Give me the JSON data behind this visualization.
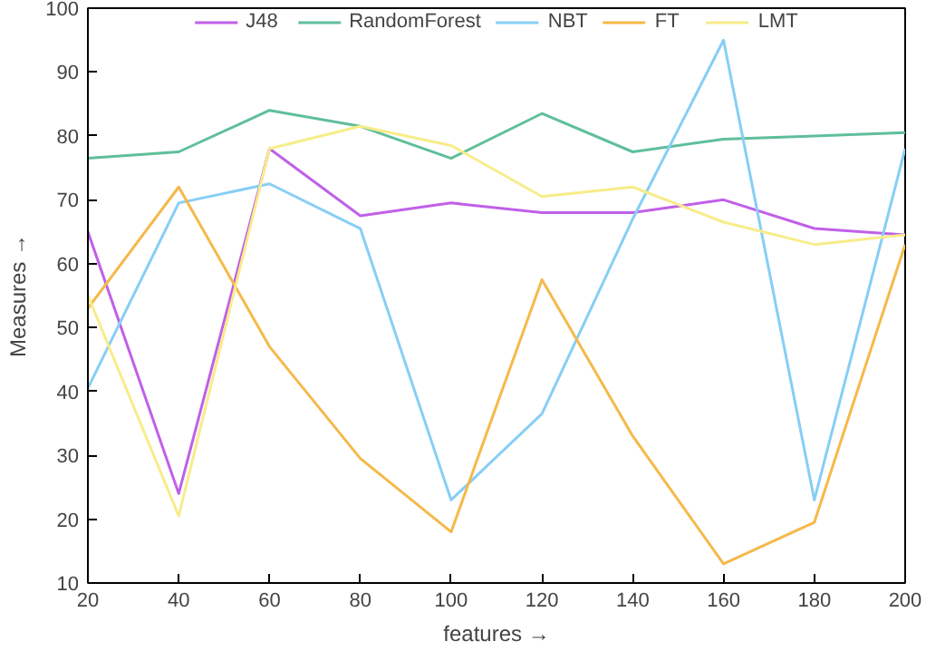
{
  "chart_data": {
    "type": "line",
    "xlabel": "features →",
    "ylabel": "Measures →",
    "x": [
      20,
      40,
      60,
      80,
      100,
      120,
      140,
      160,
      180,
      200
    ],
    "series": [
      {
        "name": "J48",
        "color": "#c060e8",
        "values": [
          65,
          24,
          78,
          67.5,
          69.5,
          68,
          68,
          70,
          65.5,
          64.5
        ]
      },
      {
        "name": "RandomForest",
        "color": "#5fbf9a",
        "values": [
          76.5,
          77.5,
          84,
          81.5,
          76.5,
          83.5,
          77.5,
          79.5,
          80,
          80.5
        ]
      },
      {
        "name": "NBT",
        "color": "#87cef5",
        "values": [
          40.5,
          69.5,
          72.5,
          65.5,
          23,
          36.5,
          67,
          95,
          23,
          78
        ]
      },
      {
        "name": "FT",
        "color": "#f5b94a",
        "values": [
          53,
          72,
          47,
          29.5,
          18,
          57.5,
          33,
          13,
          19.5,
          63
        ]
      },
      {
        "name": "LMT",
        "color": "#f8ec8a",
        "values": [
          55,
          20.5,
          78,
          81.5,
          78.5,
          70.5,
          72,
          66.5,
          63,
          64.5
        ]
      }
    ],
    "xlim": [
      20,
      200
    ],
    "xticks": [
      20,
      40,
      60,
      80,
      100,
      120,
      140,
      160,
      180,
      200
    ],
    "ylim": [
      10,
      100
    ],
    "yticks": [
      10,
      20,
      30,
      40,
      50,
      60,
      70,
      80,
      90,
      100
    ],
    "grid": false,
    "legend": "top",
    "marker": "none",
    "line_style": "solid"
  }
}
